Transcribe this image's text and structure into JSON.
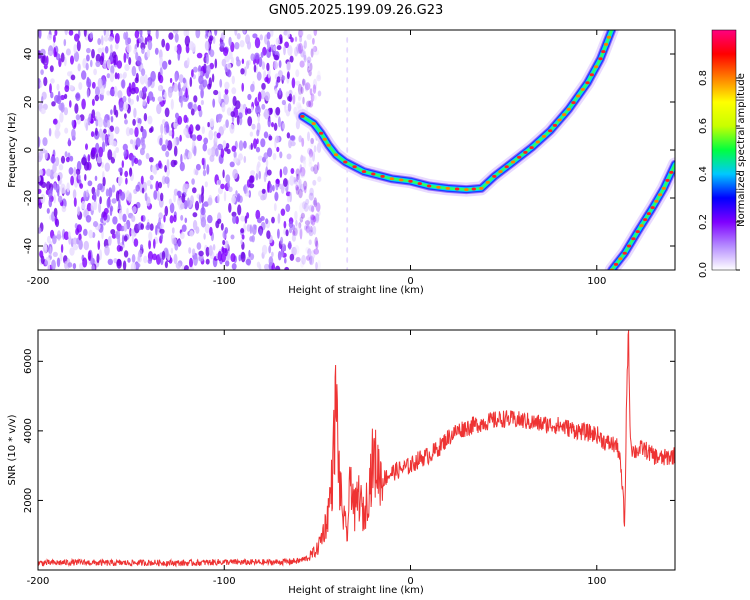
{
  "figure": {
    "title": "GN05.2025.199.09.26.G23"
  },
  "colorbar": {
    "label": "Normalized spectral amplitude",
    "ticks": [
      "0.0",
      "0.2",
      "0.4",
      "0.6",
      "0.8"
    ],
    "tick_values": [
      0.0,
      0.2,
      0.4,
      0.6,
      0.8
    ],
    "range": [
      0,
      1
    ],
    "stops": [
      "#ffffff",
      "#b58cff",
      "#7f00ff",
      "#0000ff",
      "#00c8ff",
      "#00ff40",
      "#c8ff00",
      "#ffff00",
      "#ff8000",
      "#ff0000",
      "#ff0080"
    ]
  },
  "chart_data": [
    {
      "type": "heatmap",
      "xlabel": "Height of straight line (km)",
      "ylabel": "Frequency (Hz)",
      "xlim": [
        -200,
        142
      ],
      "ylim": [
        -50,
        50
      ],
      "xticks": [
        -200,
        -100,
        0,
        100
      ],
      "xtick_labels": [
        "-200",
        "-100",
        "0",
        "100"
      ],
      "yticks": [
        -40,
        -20,
        0,
        20,
        40
      ],
      "ytick_labels": [
        "-40",
        "-20",
        "0",
        "20",
        "40"
      ],
      "noise_region_x": [
        -200,
        -52
      ],
      "ridges": [
        {
          "points": [
            [
              -58,
              14
            ],
            [
              -52,
              11
            ],
            [
              -48,
              7
            ],
            [
              -44,
              2
            ],
            [
              -40,
              -2
            ],
            [
              -35,
              -5
            ],
            [
              -30,
              -7
            ],
            [
              -25,
              -9
            ],
            [
              -20,
              -10
            ],
            [
              -10,
              -12
            ],
            [
              0,
              -13
            ],
            [
              10,
              -15
            ],
            [
              20,
              -16
            ],
            [
              30,
              -16.5
            ],
            [
              38,
              -16
            ],
            [
              45,
              -11
            ],
            [
              55,
              -5
            ],
            [
              65,
              1
            ],
            [
              75,
              8
            ],
            [
              85,
              17
            ],
            [
              95,
              28
            ],
            [
              102,
              38
            ],
            [
              108,
              50
            ]
          ]
        },
        {
          "points": [
            [
              108,
              -50
            ],
            [
              115,
              -43
            ],
            [
              122,
              -34
            ],
            [
              130,
              -24
            ],
            [
              136,
              -16
            ],
            [
              142,
              -6
            ]
          ]
        }
      ]
    },
    {
      "type": "line",
      "xlabel": "Height of straight line (km)",
      "ylabel": "SNR (10 * v/v)",
      "xlim": [
        -200,
        142
      ],
      "ylim": [
        0,
        6900
      ],
      "xticks": [
        -200,
        -100,
        0,
        100
      ],
      "xtick_labels": [
        "-200",
        "-100",
        "0",
        "100"
      ],
      "yticks": [
        2000,
        4000,
        6000
      ],
      "ytick_labels": [
        "2000",
        "4000",
        "6000"
      ],
      "series": [
        {
          "color": "#ee3333",
          "x": [
            -200,
            -180,
            -160,
            -140,
            -120,
            -100,
            -90,
            -80,
            -70,
            -60,
            -55,
            -50,
            -45,
            -42,
            -40,
            -38,
            -36,
            -34,
            -32,
            -30,
            -28,
            -25,
            -22,
            -20,
            -15,
            -10,
            -5,
            0,
            5,
            10,
            15,
            20,
            25,
            30,
            40,
            50,
            60,
            70,
            80,
            90,
            100,
            105,
            110,
            112,
            114,
            115,
            116,
            117,
            118,
            119,
            120,
            125,
            130,
            135,
            142
          ],
          "y": [
            200,
            220,
            200,
            210,
            200,
            230,
            220,
            220,
            230,
            260,
            350,
            600,
            1400,
            2600,
            4950,
            2400,
            1500,
            1000,
            2800,
            1600,
            2200,
            1500,
            2500,
            3200,
            2600,
            2800,
            2900,
            3000,
            3200,
            3300,
            3500,
            3800,
            4000,
            4100,
            4250,
            4350,
            4300,
            4200,
            4150,
            4000,
            3900,
            3650,
            3600,
            3400,
            2200,
            1200,
            5000,
            6900,
            3800,
            3500,
            3400,
            3500,
            3300,
            3200,
            3300
          ]
        }
      ]
    }
  ]
}
